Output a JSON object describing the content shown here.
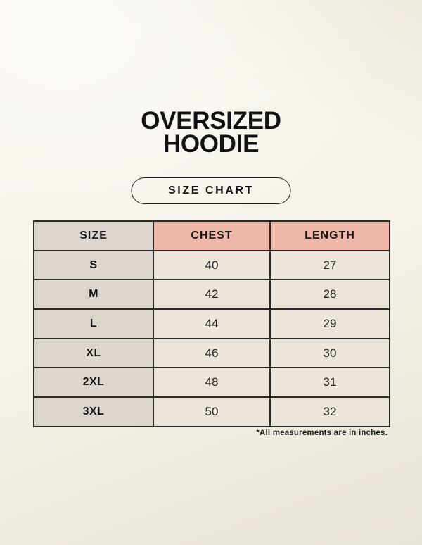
{
  "page": {
    "title_line1": "OVERSIZED",
    "title_line2": "HOODIE",
    "badge_label": "SIZE CHART",
    "footnote": "*All measurements are in inches."
  },
  "table": {
    "headers": [
      "SIZE",
      "CHEST",
      "LENGTH"
    ],
    "rows": [
      {
        "size": "S",
        "chest": "40",
        "length": "27"
      },
      {
        "size": "M",
        "chest": "42",
        "length": "28"
      },
      {
        "size": "L",
        "chest": "44",
        "length": "29"
      },
      {
        "size": "XL",
        "chest": "46",
        "length": "30"
      },
      {
        "size": "2XL",
        "chest": "48",
        "length": "31"
      },
      {
        "size": "3XL",
        "chest": "50",
        "length": "32"
      }
    ],
    "units": "inches"
  },
  "colors": {
    "background_top": "#f8f4ed",
    "background_bottom": "#e8e3d7",
    "header_pink": "#eeb7a7",
    "size_column_gray": "#dcd6ce",
    "cell_cream": "#ebe5da",
    "table_border": "#2a2a26",
    "text": "#161616"
  }
}
